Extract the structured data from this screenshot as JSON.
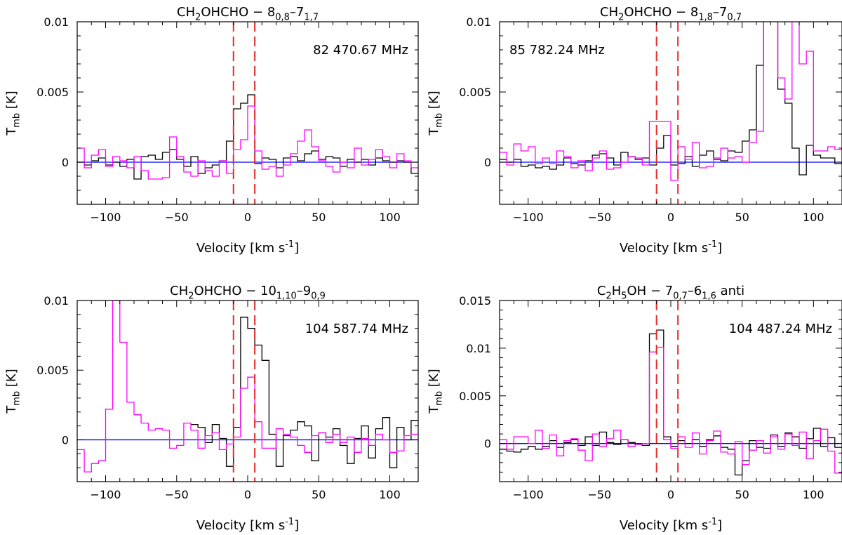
{
  "colors": {
    "black": "#000000",
    "magenta": "#ff00ff",
    "baseline": "#0000ff",
    "marker": "#e32b2b"
  },
  "chart_data": [
    {
      "type": "line",
      "title": {
        "molecule": "CH2OHCHO",
        "transition": "8_{0,8}–7_{1,7}",
        "suffix": ""
      },
      "frequency": "82 470.67 MHz",
      "frequency_position": "top-right",
      "xlabel": "Velocity [km s^{-1}]",
      "ylabel": "T_{mb} [K]",
      "xlim": [
        -120,
        120
      ],
      "ylim": [
        -0.003,
        0.01
      ],
      "xticks": [
        -100,
        -50,
        0,
        50,
        100
      ],
      "yticks": [
        0,
        0.005,
        0.01
      ],
      "ytick_labels": [
        "0",
        "0.005",
        "0.01"
      ],
      "vlines": [
        -10,
        5
      ],
      "series": [
        {
          "name": "black",
          "color": "#000000",
          "x0": -120,
          "dx": 5,
          "values": [
            0.0,
            -0.0002,
            0.0001,
            0.0003,
            -0.0002,
            0.0,
            -0.0003,
            0.0002,
            -0.0012,
            0.0004,
            0.0005,
            0.0002,
            0.0007,
            0.0009,
            0.0002,
            -0.0003,
            0.0004,
            -0.0008,
            -0.0004,
            -0.0002,
            0.0001,
            0.0015,
            0.0038,
            0.0042,
            0.0048,
            -0.0001,
            0.0003,
            0.0002,
            -0.0004,
            0.0003,
            0.0004,
            0.0001,
            0.0006,
            0.0008,
            0.0002,
            0.0004,
            0.0003,
            -0.0003,
            0.0002,
            0.0,
            0.0002,
            -0.0002,
            0.0003,
            0.0001,
            0.0,
            0.0001,
            0.0,
            -0.0008
          ]
        },
        {
          "name": "magenta",
          "color": "#ff00ff",
          "x0": -120,
          "dx": 5,
          "values": [
            0.001,
            -0.0004,
            0.0005,
            0.0009,
            -0.0003,
            0.0004,
            0.0001,
            -0.0004,
            0.0004,
            -0.0006,
            -0.0012,
            -0.0012,
            -0.0011,
            0.0018,
            0.0004,
            -0.0007,
            -0.001,
            0.0001,
            -0.0006,
            -0.001,
            0.0001,
            -0.0008,
            0.0009,
            0.0016,
            0.004,
            0.0008,
            -0.0005,
            -0.0003,
            -0.001,
            -0.0002,
            0.0006,
            0.0015,
            0.0023,
            0.0011,
            0.0001,
            -0.0003,
            -0.0007,
            0.0,
            -0.0004,
            0.001,
            -0.0002,
            0.0002,
            0.0009,
            0.0004,
            -0.0004,
            0.0006,
            0.0001,
            -0.0004
          ]
        }
      ]
    },
    {
      "type": "line",
      "title": {
        "molecule": "CH2OHCHO",
        "transition": "8_{1,8}–7_{0,7}",
        "suffix": ""
      },
      "frequency": "85 782.24 MHz",
      "frequency_position": "top-left",
      "xlabel": "Velocity [km s^{-1}]",
      "ylabel": "T_{mb} [K]",
      "xlim": [
        -120,
        120
      ],
      "ylim": [
        -0.003,
        0.01
      ],
      "xticks": [
        -100,
        -50,
        0,
        50,
        100
      ],
      "yticks": [
        0,
        0.005,
        0.01
      ],
      "ytick_labels": [
        "0",
        "0.005",
        "0.01"
      ],
      "vlines": [
        -10,
        5
      ],
      "series": [
        {
          "name": "black",
          "color": "#000000",
          "x0": -120,
          "dx": 5,
          "values": [
            0.0002,
            0.0,
            0.0002,
            -0.0003,
            -0.0002,
            -0.0004,
            -0.0003,
            -0.0005,
            -0.0002,
            0.0003,
            -0.0001,
            -0.0002,
            0.0001,
            0.0005,
            0.0006,
            0.0003,
            -0.0002,
            0.0007,
            0.0004,
            0.0002,
            0.0003,
            -0.0002,
            0.001,
            0.0019,
            -0.0002,
            -0.0001,
            0.0004,
            -0.0003,
            0.0005,
            0.0008,
            0.0002,
            0.0001,
            0.0008,
            0.0007,
            0.0015,
            0.0023,
            0.0069,
            0.011,
            0.0175,
            0.0052,
            0.0042,
            0.001,
            -0.0009,
            0.0012,
            0.0005,
            0.0003,
            0.0003,
            -0.0001
          ]
        },
        {
          "name": "magenta",
          "color": "#ff00ff",
          "x0": -120,
          "dx": 5,
          "values": [
            0.0007,
            -0.0002,
            0.0013,
            0.0008,
            0.0011,
            -0.0001,
            0.0003,
            -0.0001,
            0.0008,
            0.0004,
            -0.0004,
            0.0001,
            -0.0006,
            0.0003,
            0.0008,
            -0.0005,
            -0.0004,
            0.0,
            0.0004,
            0.0003,
            -0.0002,
            0.0029,
            0.0029,
            0.0029,
            -0.0013,
            0.0011,
            0.0002,
            0.0014,
            -0.0004,
            -0.0003,
            0.0003,
            0.001,
            0.0003,
            0.0004,
            0.0,
            0.0014,
            0.0022,
            0.0125,
            0.014,
            0.006,
            0.0045,
            0.014,
            0.007,
            0.0079,
            0.0008,
            0.0008,
            0.0011,
            0.0009
          ]
        }
      ]
    },
    {
      "type": "line",
      "title": {
        "molecule": "CH2OHCHO",
        "transition": "10_{1,10}–9_{0,9}",
        "suffix": ""
      },
      "frequency": "104 587.74 MHz",
      "frequency_position": "top-right",
      "xlabel": "Velocity [km s^{-1}]",
      "ylabel": "T_{mb} [K]",
      "xlim": [
        -120,
        120
      ],
      "ylim": [
        -0.003,
        0.01
      ],
      "xticks": [
        -100,
        -50,
        0,
        50,
        100
      ],
      "yticks": [
        0,
        0.005,
        0.01
      ],
      "ytick_labels": [
        "0",
        "0.005",
        "0.01"
      ],
      "vlines": [
        -10,
        5
      ],
      "series": [
        {
          "name": "black",
          "color": "#000000",
          "x0": -40,
          "dx": 5,
          "values": [
            0.0011,
            0.0009,
            -0.0002,
            0.0011,
            0.0001,
            -0.0019,
            0.0009,
            0.0088,
            0.008,
            0.0068,
            0.0057,
            0.0004,
            -0.0019,
            0.0003,
            0.0007,
            0.0013,
            0.001,
            -0.0015,
            0.0005,
            0.0002,
            0.0008,
            -0.0004,
            -0.0017,
            0.0001,
            0.001,
            -0.0013,
            0.0008,
            0.0016,
            -0.002,
            0.0009,
            0.0,
            0.0014
          ]
        },
        {
          "name": "magenta",
          "color": "#ff00ff",
          "x0": -120,
          "dx": 5,
          "values": [
            -0.0007,
            -0.0023,
            -0.0017,
            -0.0015,
            0.0022,
            0.01,
            0.007,
            0.0027,
            0.0018,
            0.0012,
            0.0007,
            0.0008,
            0.0007,
            -0.0006,
            -0.0004,
            0.0012,
            0.0007,
            -0.0006,
            0.0003,
            0.0005,
            -0.0007,
            -0.0003,
            0.0002,
            0.0037,
            0.0045,
            0.0013,
            -0.0006,
            -0.0006,
            0.0008,
            0.0004,
            0.0002,
            -0.0004,
            -0.0009,
            0.0003,
            0.0005,
            -0.0002,
            0.0004,
            -0.0002,
            0.0002,
            -0.0009,
            0.0001,
            -0.0004,
            0.0004,
            0.0,
            -0.0009,
            -0.0008,
            0.0003,
            0.0004
          ]
        }
      ]
    },
    {
      "type": "line",
      "title": {
        "molecule": "C2H5OH",
        "transition": "7_{0,7}–6_{1,6}",
        "suffix": " anti"
      },
      "frequency": "104 487.24 MHz",
      "frequency_position": "top-right",
      "xlabel": "Velocity [km s^{-1}]",
      "ylabel": "T_{mb} [K]",
      "xlim": [
        -120,
        120
      ],
      "ylim": [
        -0.004,
        0.015
      ],
      "xticks": [
        -100,
        -50,
        0,
        50,
        100
      ],
      "yticks": [
        0,
        0.005,
        0.01,
        0.015
      ],
      "ytick_labels": [
        "0",
        "0.005",
        "0.01",
        "0.015"
      ],
      "vlines": [
        -10,
        5
      ],
      "series": [
        {
          "name": "black",
          "color": "#000000",
          "x0": -120,
          "dx": 5,
          "values": [
            -0.0006,
            -0.0008,
            -0.0009,
            -0.0006,
            -0.0003,
            -0.0006,
            -0.0003,
            0.0003,
            -0.0004,
            0.0001,
            0.0004,
            -0.0002,
            0.0007,
            -0.0002,
            0.0012,
            0.0001,
            -0.0001,
            0.0004,
            0.0001,
            -0.0001,
            -0.0002,
            0.0115,
            0.0119,
            0.0007,
            -0.0003,
            0.0003,
            0.0,
            0.0004,
            -0.0003,
            0.0004,
            0.0008,
            -0.0004,
            -0.0006,
            -0.0033,
            -0.0018,
            0.0003,
            -0.0004,
            -0.0005,
            0.0009,
            -0.0003,
            0.0011,
            0.0007,
            -0.0005,
            0.0005,
            0.0016,
            -0.0003,
            0.0006,
            -0.0004
          ]
        },
        {
          "name": "magenta",
          "color": "#ff00ff",
          "x0": -120,
          "dx": 5,
          "values": [
            0.0004,
            -0.0006,
            0.0007,
            0.0007,
            0.0,
            0.0014,
            -0.0005,
            0.0009,
            -0.0013,
            0.0003,
            0.0005,
            -0.0007,
            -0.0018,
            0.001,
            -0.0003,
            0.0005,
            0.0014,
            0.0004,
            -0.0003,
            -0.0001,
            0.0,
            0.0096,
            0.0101,
            0.0004,
            -0.0005,
            0.0007,
            -0.0004,
            0.0011,
            -0.0011,
            0.0003,
            0.0013,
            -0.0009,
            -0.0011,
            0.0002,
            -0.0022,
            -0.0007,
            0.0003,
            -0.001,
            0.0007,
            -0.0006,
            0.001,
            -0.0002,
            0.0012,
            -0.0016,
            0.0003,
            0.0015,
            -0.0008,
            -0.0031
          ]
        }
      ]
    }
  ]
}
